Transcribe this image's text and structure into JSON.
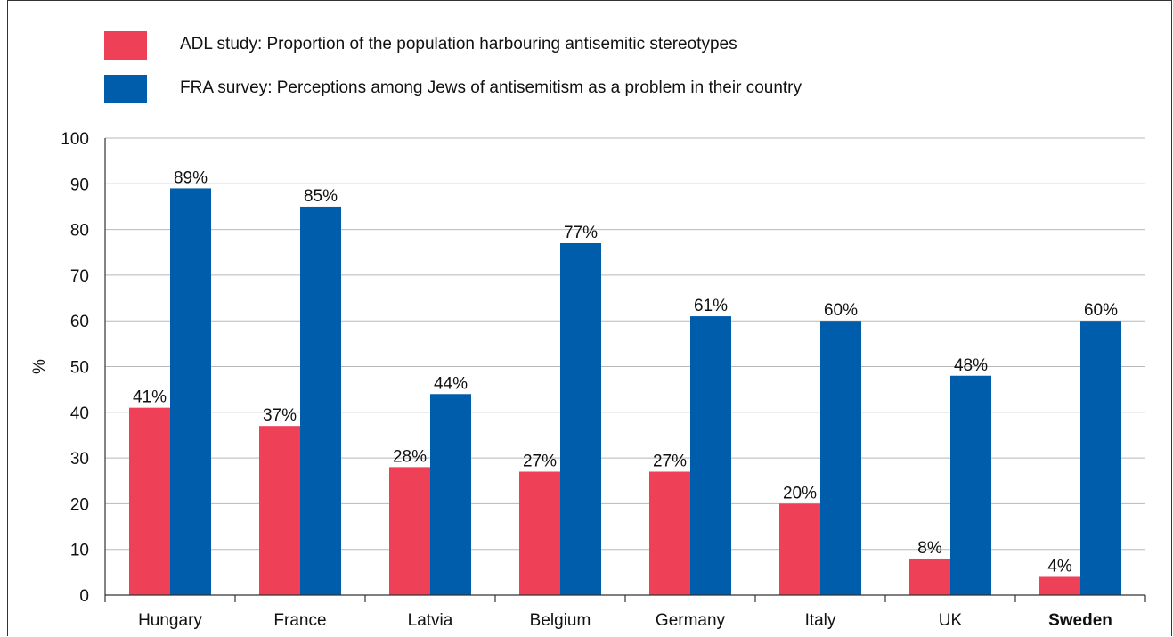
{
  "colors": {
    "adl": "#EE4158",
    "fra": "#005DAC",
    "grid": "#B8B8B8",
    "axis": "#333333"
  },
  "legend": [
    {
      "label": "ADL study: Proportion of the population harbouring antisemitic stereotypes",
      "color": "#EE4158"
    },
    {
      "label": "FRA survey: Perceptions among Jews of antisemitism as a problem in their country",
      "color": "#005DAC"
    }
  ],
  "chart_data": {
    "type": "bar",
    "categories": [
      "Hungary",
      "France",
      "Latvia",
      "Belgium",
      "Germany",
      "Italy",
      "UK",
      "Sweden"
    ],
    "highlighted_category": "Sweden",
    "series": [
      {
        "name": "ADL study: Proportion of the population harbouring antisemitic stereotypes",
        "values": [
          41,
          37,
          28,
          27,
          27,
          20,
          8,
          4
        ],
        "labels": [
          "41%",
          "37%",
          "28%",
          "27%",
          "27%",
          "20%",
          "8%",
          "4%"
        ],
        "color": "#EE4158"
      },
      {
        "name": "FRA survey: Perceptions among Jews of antisemitism as a problem in their country",
        "values": [
          89,
          85,
          44,
          77,
          61,
          60,
          48,
          60
        ],
        "labels": [
          "89%",
          "85%",
          "44%",
          "77%",
          "61%",
          "60%",
          "48%",
          "60%"
        ],
        "color": "#005DAC"
      }
    ],
    "ylabel": "%",
    "xlabel": "",
    "ylim": [
      0,
      100
    ],
    "yticks": [
      0,
      10,
      20,
      30,
      40,
      50,
      60,
      70,
      80,
      90,
      100
    ],
    "grid": true,
    "legend_position": "top-left"
  }
}
